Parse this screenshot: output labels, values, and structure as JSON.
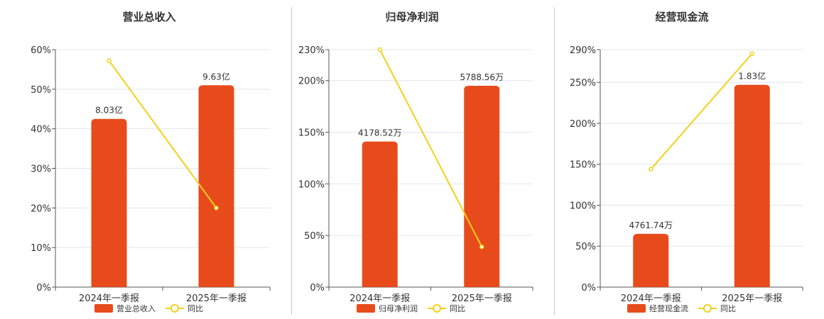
{
  "colors": {
    "bar": "#e84b1b",
    "line": "#f2d21a",
    "grid": "#e4e4ee",
    "axis": "#555555",
    "divider": "#c8c8c8"
  },
  "chart_data": [
    {
      "type": "bar",
      "title": "营业总收入",
      "categories": [
        "2024年一季报",
        "2025年一季报"
      ],
      "series": [
        {
          "name": "营业总收入",
          "type": "bar",
          "values": [
            42.5,
            51
          ],
          "labels": [
            "8.03亿",
            "9.63亿"
          ]
        },
        {
          "name": "同比",
          "type": "line",
          "values": [
            57.2,
            20
          ]
        }
      ],
      "yticks": [
        "0%",
        "10%",
        "20%",
        "30%",
        "40%",
        "50%",
        "60%"
      ],
      "ylim": [
        0,
        60
      ],
      "grid": true,
      "legend": "bottom"
    },
    {
      "type": "bar",
      "title": "归母净利润",
      "categories": [
        "2024年一季报",
        "2025年一季报"
      ],
      "series": [
        {
          "name": "归母净利润",
          "type": "bar",
          "values": [
            141,
            195
          ],
          "labels": [
            "4178.52万",
            "5788.56万"
          ]
        },
        {
          "name": "同比",
          "type": "line",
          "values": [
            230,
            39
          ]
        }
      ],
      "yticks": [
        "0%",
        "50%",
        "100%",
        "150%",
        "200%",
        "230%"
      ],
      "ylim": [
        0,
        230
      ],
      "grid": true,
      "legend": "bottom"
    },
    {
      "type": "bar",
      "title": "经营现金流",
      "categories": [
        "2024年一季报",
        "2025年一季报"
      ],
      "series": [
        {
          "name": "经营现金流",
          "type": "bar",
          "values": [
            65,
            247
          ],
          "labels": [
            "4761.74万",
            "1.83亿"
          ]
        },
        {
          "name": "同比",
          "type": "line",
          "values": [
            144,
            285
          ]
        }
      ],
      "yticks": [
        "0%",
        "50%",
        "100%",
        "150%",
        "200%",
        "250%",
        "290%"
      ],
      "ylim": [
        0,
        290
      ],
      "grid": true,
      "legend": "bottom"
    }
  ]
}
